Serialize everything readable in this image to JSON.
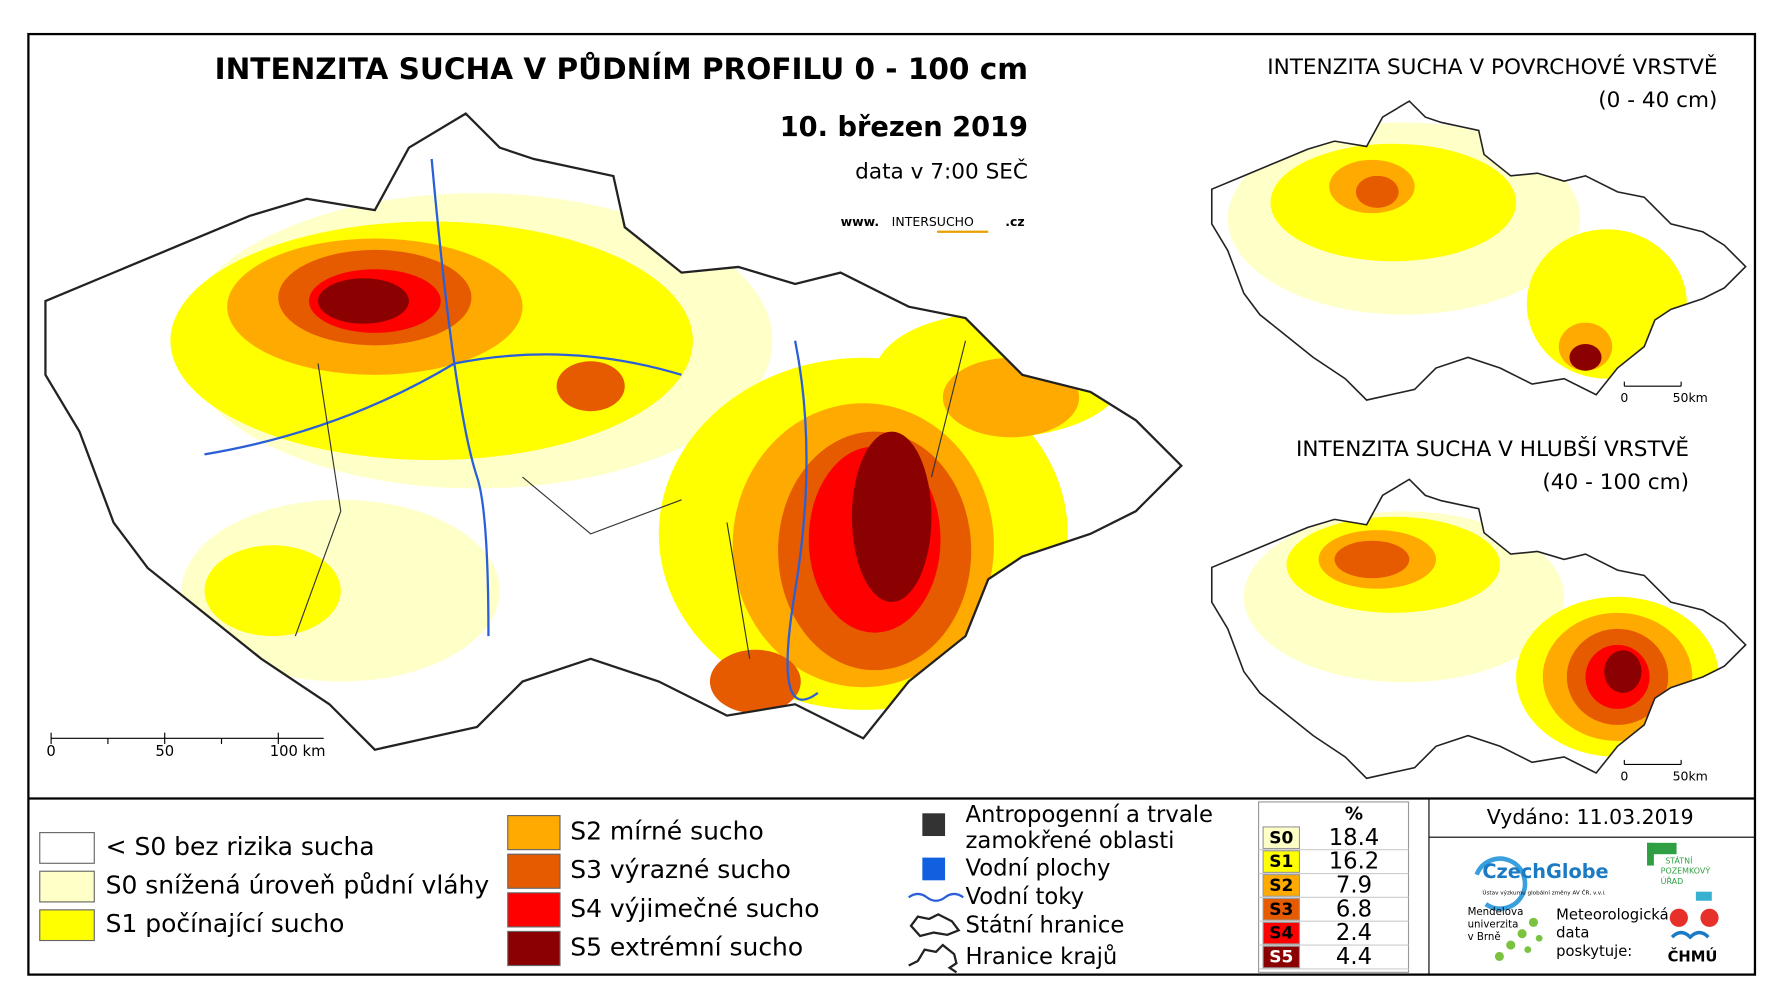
{
  "main_map": {
    "title": "INTENZITA SUCHA V PŮDNÍM PROFILU 0 - 100 cm",
    "date": "10. březen 2019",
    "data_time": "data v 7:00 SEČ",
    "website": [
      "www.",
      "INTERSUCHO",
      ".cz"
    ],
    "scale": [
      "0",
      "50",
      "100 km"
    ]
  },
  "surface_map": {
    "title": "INTENZITA SUCHA V POVRCHOVÉ VRSTVĚ",
    "depth": "(0 - 40 cm)",
    "scale": [
      "0",
      "50km"
    ]
  },
  "deep_map": {
    "title": "INTENZITA SUCHA V HLUBŠÍ VRSTVĚ",
    "depth": "(40 - 100 cm)",
    "scale": [
      "0",
      "50km"
    ]
  },
  "legend": {
    "drought_classes": [
      {
        "label": "< S0 bez rizika sucha",
        "color": "#ffffff"
      },
      {
        "label": "S0 snížená úroveň půdní vláhy",
        "color": "#ffffc8"
      },
      {
        "label": "S1 počínající sucho",
        "color": "#ffff00"
      },
      {
        "label": "S2 mírné sucho",
        "color": "#ffaa00"
      },
      {
        "label": "S3 výrazné sucho",
        "color": "#e65a00"
      },
      {
        "label": "S4 výjimečné sucho",
        "color": "#ff0000"
      },
      {
        "label": "S5 extrémní sucho",
        "color": "#8b0000"
      }
    ],
    "other": [
      {
        "label": [
          "Antropogenní a trvale",
          "zamokřené oblasti"
        ]
      },
      {
        "label": [
          "Vodní plochy"
        ]
      },
      {
        "label": [
          "Vodní toky"
        ]
      },
      {
        "label": [
          "Státní hranice"
        ]
      },
      {
        "label": [
          "Hranice krajů"
        ]
      }
    ]
  },
  "stats": {
    "header": "%",
    "rows": [
      {
        "class": "S0",
        "percent": 18.4,
        "color": "#ffffc8"
      },
      {
        "class": "S1",
        "percent": 16.2,
        "color": "#ffff00"
      },
      {
        "class": "S2",
        "percent": 7.9,
        "color": "#ffaa00"
      },
      {
        "class": "S3",
        "percent": 6.8,
        "color": "#e65a00"
      },
      {
        "class": "S4",
        "percent": 2.4,
        "color": "#ff0000"
      },
      {
        "class": "S5",
        "percent": 4.4,
        "color": "#8b0000"
      }
    ]
  },
  "issued": "Vydáno: 11.03.2019",
  "logos": {
    "czechglobe": "CzechGlobe",
    "czechglobe_sub": "Ústav výzkumu globální změny AV ČR, v.v.i.",
    "spu": [
      "STÁTNÍ",
      "POZEMKOVÝ",
      "ÚŘAD"
    ],
    "mendelu": [
      "Mendelova",
      "univerzita",
      "v Brně"
    ],
    "meteo": [
      "Meteorologická",
      "data",
      "poskytuje:"
    ],
    "chmu": "ČHMÚ"
  }
}
